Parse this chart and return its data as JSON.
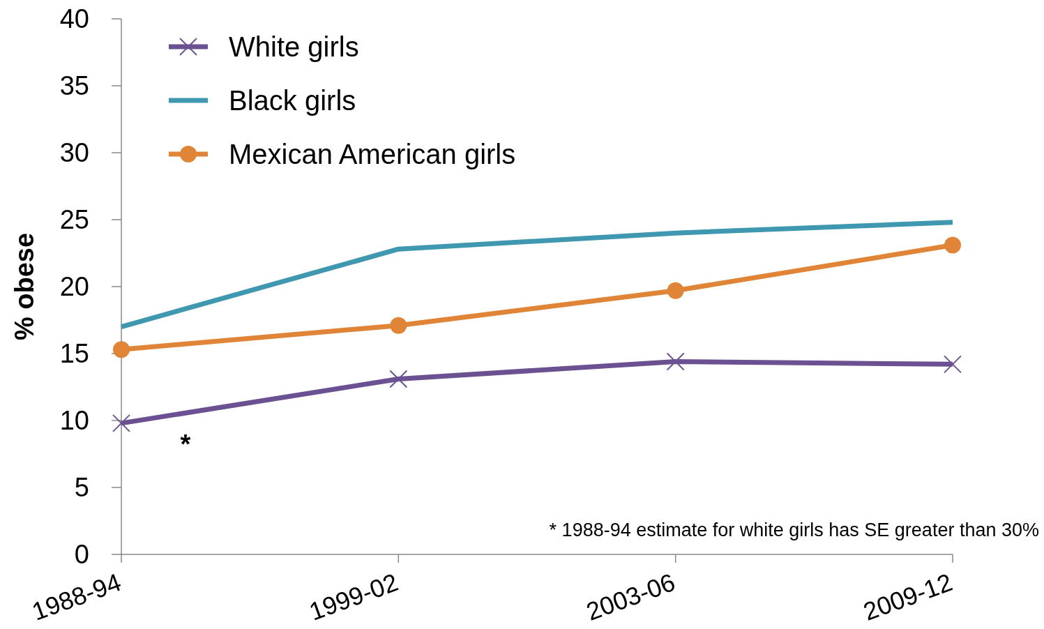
{
  "chart_data": {
    "type": "line",
    "ylabel": "% obese",
    "categories": [
      "1988-94",
      "1999-02",
      "2003-06",
      "2009-12"
    ],
    "series": [
      {
        "name": "White girls",
        "color": "#6b5192",
        "marker": "cross",
        "values": [
          9.8,
          13.1,
          14.4,
          14.2
        ]
      },
      {
        "name": "Black girls",
        "color": "#3f98b0",
        "marker": "none",
        "values": [
          17.0,
          22.8,
          24.0,
          24.8
        ]
      },
      {
        "name": "Mexican American girls",
        "color": "#e08537",
        "marker": "circle",
        "values": [
          15.3,
          17.1,
          19.7,
          23.1
        ]
      }
    ],
    "ylim": [
      0,
      40
    ],
    "yticks": [
      0,
      5,
      10,
      15,
      20,
      25,
      30,
      35,
      40
    ],
    "grid": false,
    "legend": "top left",
    "annotations": [
      "*",
      "* 1988-94 estimate for white girls has SE greater than 30%"
    ]
  }
}
